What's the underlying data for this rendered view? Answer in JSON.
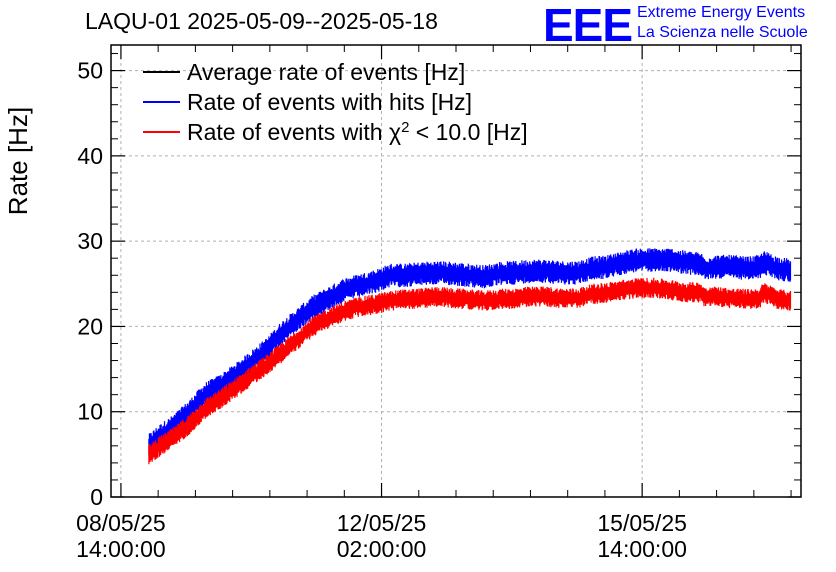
{
  "header": {
    "title": "LAQU-01 2025-05-09--2025-05-18",
    "logo_text": "EEE",
    "logo_line1": "Extreme Energy Events",
    "logo_line2": "La Scienza nelle Scuole"
  },
  "colors": {
    "average": "#000000",
    "hits": "#0000ff",
    "chi2": "#ff0000",
    "grid": "#b0b0b0"
  },
  "chart_data": {
    "type": "line",
    "title": "LAQU-01 2025-05-09--2025-05-18",
    "xlabel": "",
    "ylabel": "Rate [Hz]",
    "ylim": [
      0,
      53
    ],
    "yticks": [
      0,
      10,
      20,
      30,
      40,
      50
    ],
    "xlim_hours": [
      -3.2,
      219.2
    ],
    "xticks": [
      {
        "hours": 0,
        "line1": "08/05/25",
        "line2": "14:00:00"
      },
      {
        "hours": 84,
        "line1": "12/05/25",
        "line2": "02:00:00"
      },
      {
        "hours": 168,
        "line1": "15/05/25",
        "line2": "14:00:00"
      }
    ],
    "x_unit": "hours since 08/05/25 14:00:00",
    "legend": [
      {
        "label_pre": "Average rate of events [Hz]",
        "label_sup": "",
        "label_post": "",
        "color": "#000000"
      },
      {
        "label_pre": "Rate of events with hits [Hz]",
        "label_sup": "",
        "label_post": "",
        "color": "#0000ff"
      },
      {
        "label_pre": "Rate of events with χ",
        "label_sup": "2",
        "label_post": " < 10.0 [Hz]",
        "color": "#ff0000"
      }
    ],
    "legend_position": "top-left",
    "grid": true,
    "series": [
      {
        "name": "Rate of events with hits [Hz]",
        "color": "#0000ff",
        "noise_amplitude": 1.4,
        "x": [
          9,
          12,
          17,
          22,
          27,
          32,
          37,
          42,
          47,
          52,
          57,
          62,
          67,
          72,
          77,
          82,
          87,
          92,
          97,
          102,
          107,
          112,
          117,
          122,
          127,
          132,
          137,
          142,
          147,
          152,
          157,
          162,
          167,
          172,
          177,
          182,
          187,
          188,
          192,
          197,
          202,
          206,
          207,
          212,
          216
        ],
        "y": [
          6,
          7,
          8.3,
          10,
          12,
          13,
          14.3,
          15.8,
          17.3,
          19.3,
          20.8,
          22.3,
          23.3,
          24.3,
          24.8,
          25.3,
          26,
          26,
          26.2,
          26.3,
          26.2,
          26,
          25.8,
          26.2,
          26.3,
          26.5,
          26.5,
          26.3,
          26.3,
          26.8,
          27,
          27.5,
          27.8,
          27.8,
          27.8,
          27.5,
          27.3,
          26.8,
          27,
          27,
          26.8,
          27,
          27.5,
          26.8,
          26.5
        ]
      },
      {
        "name": "Rate of events with χ2 < 10.0 [Hz]",
        "color": "#ff0000",
        "noise_amplitude": 1.2,
        "x": [
          9,
          12,
          17,
          22,
          27,
          32,
          37,
          42,
          47,
          52,
          57,
          62,
          67,
          72,
          77,
          82,
          87,
          92,
          97,
          102,
          107,
          112,
          117,
          122,
          127,
          132,
          137,
          142,
          147,
          152,
          157,
          162,
          167,
          172,
          177,
          182,
          187,
          188,
          192,
          197,
          202,
          206,
          207,
          212,
          216
        ],
        "y": [
          5,
          5.8,
          7,
          8.5,
          10.3,
          11.5,
          12.8,
          14.2,
          15.5,
          17,
          18.5,
          20,
          21,
          21.8,
          22.3,
          22.6,
          23,
          23.2,
          23.3,
          23.5,
          23.3,
          23.2,
          23,
          23.2,
          23.3,
          23.5,
          23.5,
          23.3,
          23.3,
          23.8,
          24,
          24.3,
          24.5,
          24.5,
          24.3,
          24,
          24,
          23.5,
          23.5,
          23.3,
          23.2,
          23.3,
          24,
          23.2,
          23
        ]
      }
    ]
  }
}
